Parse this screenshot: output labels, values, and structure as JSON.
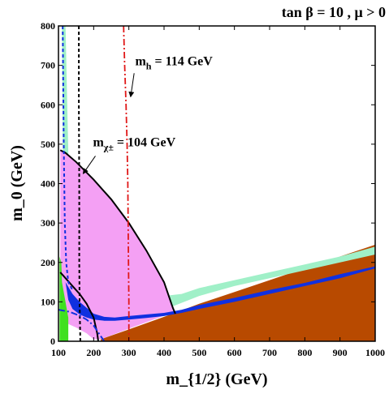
{
  "chart_data": {
    "type": "area",
    "title": "tan β = 10 ,  μ > 0",
    "xlabel": "m_{1/2} (GeV)",
    "ylabel": "m_0 (GeV)",
    "xlim": [
      100,
      1000
    ],
    "ylim": [
      0,
      800
    ],
    "x_ticks": [
      100,
      200,
      300,
      400,
      500,
      600,
      700,
      800,
      900,
      1000
    ],
    "y_ticks": [
      0,
      100,
      200,
      300,
      400,
      500,
      600,
      700,
      800
    ],
    "grid": false,
    "colors": {
      "stau_lsp": "#b84a00",
      "dark_matter_band": "#1030e0",
      "relic_preferred": "#a0f0c8",
      "g_minus_2": "#f4a0f4",
      "b_to_s_gamma": "#40e020",
      "higgs_line": "#e01818",
      "chargino_line": "#000000"
    },
    "regions": [
      {
        "key": "stau_lsp",
        "points": [
          [
            220,
            5
          ],
          [
            300,
            30
          ],
          [
            400,
            62
          ],
          [
            500,
            95
          ],
          [
            600,
            125
          ],
          [
            700,
            155
          ],
          [
            800,
            185
          ],
          [
            900,
            215
          ],
          [
            1000,
            245
          ],
          [
            1000,
            0
          ],
          [
            220,
            0
          ]
        ]
      },
      {
        "key": "relic_preferred",
        "points": [
          [
            112,
            800
          ],
          [
            120,
            800
          ],
          [
            125,
            600
          ],
          [
            130,
            400
          ],
          [
            135,
            250
          ],
          [
            150,
            165
          ],
          [
            200,
            150
          ],
          [
            300,
            140
          ],
          [
            400,
            115
          ],
          [
            450,
            120
          ],
          [
            500,
            135
          ],
          [
            600,
            155
          ],
          [
            700,
            175
          ],
          [
            800,
            195
          ],
          [
            900,
            215
          ],
          [
            1000,
            240
          ],
          [
            1000,
            220
          ],
          [
            900,
            200
          ],
          [
            800,
            180
          ],
          [
            700,
            160
          ],
          [
            600,
            140
          ],
          [
            500,
            115
          ],
          [
            400,
            80
          ],
          [
            300,
            70
          ],
          [
            200,
            70
          ],
          [
            150,
            95
          ],
          [
            125,
            130
          ],
          [
            115,
            150
          ],
          [
            110,
            800
          ]
        ]
      },
      {
        "key": "g_minus_2",
        "points": [
          [
            105,
            485
          ],
          [
            120,
            478
          ],
          [
            150,
            455
          ],
          [
            200,
            410
          ],
          [
            250,
            360
          ],
          [
            300,
            300
          ],
          [
            350,
            230
          ],
          [
            400,
            150
          ],
          [
            425,
            85
          ],
          [
            430,
            75
          ],
          [
            370,
            55
          ],
          [
            300,
            32
          ],
          [
            220,
            5
          ],
          [
            200,
            5
          ],
          [
            180,
            20
          ],
          [
            150,
            35
          ],
          [
            125,
            45
          ],
          [
            105,
            55
          ]
        ]
      },
      {
        "key": "b_to_s_gamma",
        "points": [
          [
            103,
            0
          ],
          [
            103,
            215
          ],
          [
            108,
            200
          ],
          [
            110,
            150
          ],
          [
            128,
            60
          ],
          [
            128,
            0
          ]
        ]
      },
      {
        "key": "dark_matter_band",
        "points": [
          [
            140,
            120
          ],
          [
            160,
            100
          ],
          [
            180,
            85
          ],
          [
            200,
            70
          ],
          [
            230,
            62
          ],
          [
            260,
            60
          ],
          [
            300,
            64
          ],
          [
            350,
            68
          ],
          [
            400,
            72
          ],
          [
            450,
            80
          ],
          [
            500,
            92
          ],
          [
            600,
            110
          ],
          [
            700,
            130
          ],
          [
            800,
            148
          ],
          [
            900,
            170
          ],
          [
            1000,
            190
          ],
          [
            1000,
            185
          ],
          [
            900,
            160
          ],
          [
            800,
            140
          ],
          [
            700,
            120
          ],
          [
            600,
            100
          ],
          [
            500,
            82
          ],
          [
            450,
            72
          ],
          [
            400,
            64
          ],
          [
            350,
            59
          ],
          [
            300,
            55
          ],
          [
            260,
            52
          ],
          [
            230,
            52
          ],
          [
            200,
            55
          ],
          [
            180,
            60
          ],
          [
            160,
            68
          ],
          [
            140,
            82
          ],
          [
            128,
            105
          ],
          [
            120,
            150
          ]
        ]
      }
    ],
    "lines": [
      {
        "key": "chargino_line",
        "style": "dashed",
        "points": [
          [
            158,
            800
          ],
          [
            158,
            600
          ],
          [
            159,
            400
          ],
          [
            159,
            200
          ],
          [
            160,
            100
          ],
          [
            162,
            0
          ]
        ]
      },
      {
        "key": "chargino_line",
        "style": "solid",
        "points": [
          [
            105,
            485
          ],
          [
            120,
            478
          ],
          [
            150,
            455
          ],
          [
            200,
            410
          ],
          [
            250,
            360
          ],
          [
            300,
            300
          ],
          [
            350,
            230
          ],
          [
            400,
            150
          ],
          [
            425,
            85
          ],
          [
            432,
            70
          ]
        ]
      },
      {
        "key": "chargino_line",
        "style": "solid",
        "points": [
          [
            105,
            175
          ],
          [
            120,
            160
          ],
          [
            140,
            140
          ],
          [
            160,
            120
          ],
          [
            180,
            95
          ],
          [
            200,
            60
          ],
          [
            210,
            20
          ],
          [
            213,
            0
          ]
        ]
      },
      {
        "key": "higgs_line",
        "style": "dashdot",
        "points": [
          [
            285,
            800
          ],
          [
            288,
            700
          ],
          [
            292,
            600
          ],
          [
            295,
            500
          ],
          [
            297,
            400
          ],
          [
            298,
            300
          ],
          [
            299,
            200
          ],
          [
            300,
            100
          ],
          [
            300,
            0
          ]
        ]
      },
      {
        "key": "dark_matter_band",
        "style": "dashdot",
        "points": [
          [
            100,
            80
          ],
          [
            130,
            75
          ],
          [
            160,
            65
          ],
          [
            180,
            55
          ],
          [
            200,
            40
          ],
          [
            215,
            20
          ],
          [
            230,
            0
          ]
        ]
      },
      {
        "key": "dark_matter_band",
        "style": "dashed",
        "points": [
          [
            112,
            800
          ],
          [
            115,
            500
          ],
          [
            118,
            300
          ],
          [
            122,
            200
          ],
          [
            128,
            150
          ],
          [
            140,
            130
          ]
        ]
      }
    ],
    "annotations": [
      {
        "text_main": "m",
        "text_sub": "h",
        "text_rest": "= 114 GeV",
        "label_at": [
          318,
          700
        ],
        "arrow_from": [
          315,
          680
        ],
        "arrow_to": [
          305,
          620
        ]
      },
      {
        "text_main": "m",
        "text_sub": "χ±",
        "text_rest": "= 104 GeV",
        "label_at": [
          198,
          495
        ],
        "arrow_from": [
          205,
          470
        ],
        "arrow_to": [
          170,
          425
        ]
      }
    ]
  }
}
